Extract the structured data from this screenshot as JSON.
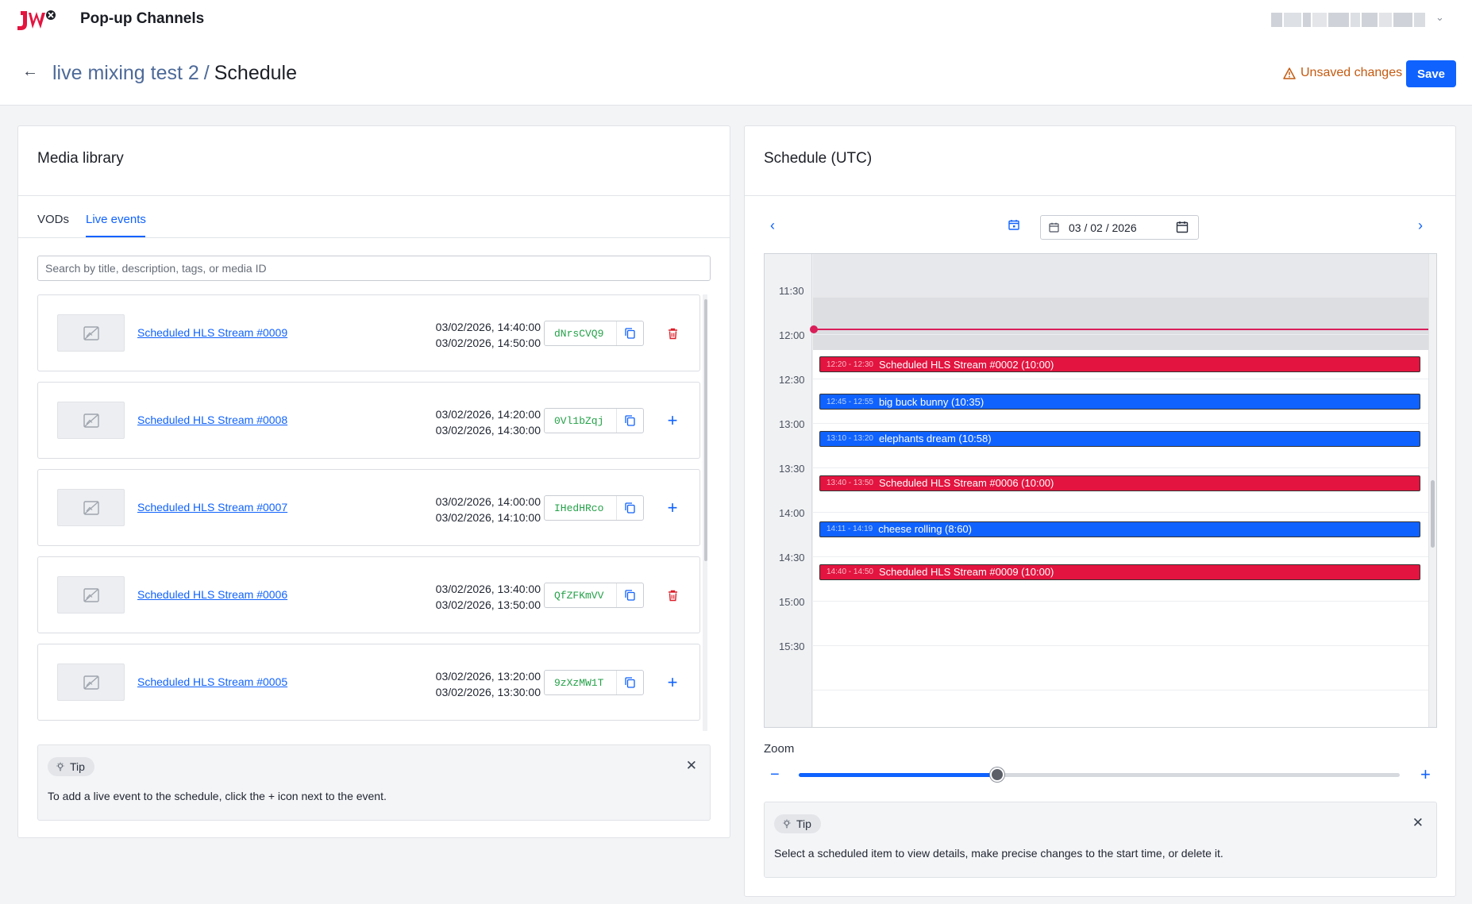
{
  "app": {
    "title": "Pop-up Channels",
    "logo_text": "JW"
  },
  "user_menu": {
    "chevron_icon": "chevron-down-icon"
  },
  "header": {
    "breadcrumb_parent": "live mixing test 2",
    "breadcrumb_separator": "/",
    "breadcrumb_current": "Schedule",
    "unsaved_label": "Unsaved changes",
    "save_label": "Save"
  },
  "media_library": {
    "title": "Media library",
    "tabs": [
      {
        "label": "VODs"
      },
      {
        "label": "Live events"
      }
    ],
    "active_tab": "Live events",
    "search": {
      "value": "",
      "placeholder": "Search by title, description, tags, or media ID"
    },
    "items": [
      {
        "title": "Scheduled HLS Stream #0009",
        "start": "03/02/2026, 14:40:00",
        "end": "03/02/2026, 14:50:00",
        "media_id": "dNrsCVQ9",
        "action": "delete"
      },
      {
        "title": "Scheduled HLS Stream #0008",
        "start": "03/02/2026, 14:20:00",
        "end": "03/02/2026, 14:30:00",
        "media_id": "0Vl1bZqj",
        "action": "add"
      },
      {
        "title": "Scheduled HLS Stream #0007",
        "start": "03/02/2026, 14:00:00",
        "end": "03/02/2026, 14:10:00",
        "media_id": "IHedHRco",
        "action": "add"
      },
      {
        "title": "Scheduled HLS Stream #0006",
        "start": "03/02/2026, 13:40:00",
        "end": "03/02/2026, 13:50:00",
        "media_id": "QfZFKmVV",
        "action": "delete"
      },
      {
        "title": "Scheduled HLS Stream #0005",
        "start": "03/02/2026, 13:20:00",
        "end": "03/02/2026, 13:30:00",
        "media_id": "9zXzMW1T",
        "action": "add"
      }
    ],
    "tip": {
      "label": "Tip",
      "text": "To add a live event to the schedule, click the + icon next to the event."
    }
  },
  "schedule": {
    "title": "Schedule (UTC)",
    "date": "03 / 02 / 2026",
    "time_labels": [
      "11:30",
      "12:00",
      "12:30",
      "13:00",
      "13:30",
      "14:00",
      "14:30",
      "15:00",
      "15:30"
    ],
    "events": [
      {
        "time": "12:20 - 12:30",
        "title": "Scheduled HLS Stream #0002 (10:00)",
        "kind": "live"
      },
      {
        "time": "12:45 - 12:55",
        "title": "big buck bunny (10:35)",
        "kind": "vod"
      },
      {
        "time": "13:10 - 13:20",
        "title": "elephants dream (10:58)",
        "kind": "vod"
      },
      {
        "time": "13:40 - 13:50",
        "title": "Scheduled HLS Stream #0006 (10:00)",
        "kind": "live"
      },
      {
        "time": "14:11 - 14:19",
        "title": "cheese rolling (8:60)",
        "kind": "vod"
      },
      {
        "time": "14:40 - 14:50",
        "title": "Scheduled HLS Stream #0009 (10:00)",
        "kind": "live"
      }
    ],
    "zoom": {
      "label": "Zoom",
      "level": 0.33
    },
    "tip": {
      "label": "Tip",
      "text": "Select a scheduled item to view details, make precise changes to the start time, or delete it."
    }
  },
  "colors": {
    "accent": "#0f62fe",
    "live_event": "#e3143f",
    "vod_event": "#1062fe",
    "warning": "#c45a10",
    "media_id": "#24a148",
    "delete": "#da1e28"
  }
}
